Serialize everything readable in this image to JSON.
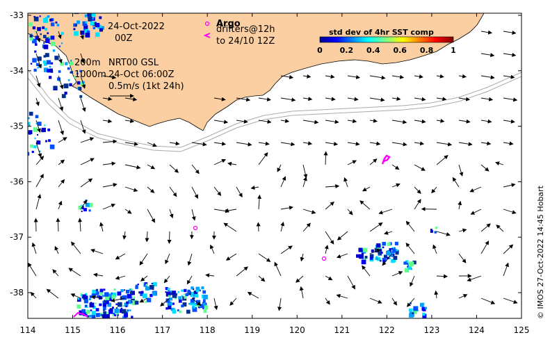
{
  "map": {
    "xticks": [
      "114",
      "115",
      "116",
      "117",
      "118",
      "119",
      "120",
      "121",
      "122",
      "123",
      "124",
      "125"
    ],
    "yticks": [
      "-33",
      "-34",
      "-35",
      "-36",
      "-37",
      "-38"
    ],
    "land_color": "#fbcfa1"
  },
  "annotations": {
    "date_line1": "24-Oct-2022",
    "date_line2": "00Z",
    "depth_200": "200m",
    "depth_1000": "1000m",
    "model": "NRT00 GSL",
    "model_time": "24-Oct 06:00Z",
    "scale": "0.5m/s (1kt 24h)",
    "argo": "Argo",
    "drifters": "drifters@12h",
    "drifters_to": "to 24/10 12Z"
  },
  "colorbar": {
    "title": "std dev of 4hr SST comp",
    "ticks": [
      "0",
      "0.2",
      "0.4",
      "0.6",
      "0.8",
      "1"
    ],
    "colormap": "jet"
  },
  "credit": "© IMOS 27-Oct-2022 14:45 Hobart",
  "icons": {
    "argo": "argo-float-circle-icon",
    "drifter": "drifter-track-icon"
  }
}
